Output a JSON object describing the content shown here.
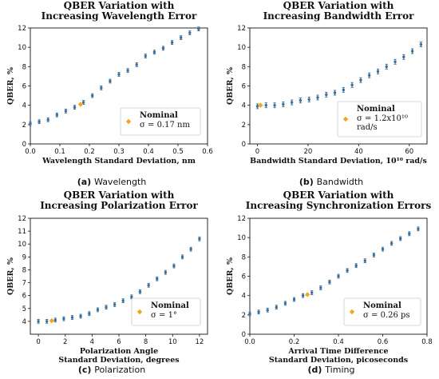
{
  "chart_data": [
    {
      "type": "scatter",
      "title_lines": [
        "QBER Variation with",
        "Increasing Wavelength Error"
      ],
      "xlabel_lines": [
        "Wavelength Standard Deviation, nm"
      ],
      "ylabel": "QBER, %",
      "xlim": [
        0,
        0.6
      ],
      "ylim": [
        0,
        12
      ],
      "xticks": [
        "0.0",
        "0.1",
        "0.2",
        "0.3",
        "0.4",
        "0.5",
        "0.6"
      ],
      "xtick_values": [
        0,
        0.1,
        0.2,
        0.3,
        0.4,
        0.5,
        0.6
      ],
      "yticks": [
        "0",
        "2",
        "4",
        "6",
        "8",
        "10",
        "12"
      ],
      "ytick_values": [
        0,
        2,
        4,
        6,
        8,
        10,
        12
      ],
      "x": [
        0.0,
        0.03,
        0.06,
        0.09,
        0.12,
        0.15,
        0.18,
        0.21,
        0.24,
        0.27,
        0.3,
        0.33,
        0.36,
        0.39,
        0.42,
        0.45,
        0.48,
        0.51,
        0.54,
        0.57
      ],
      "y": [
        2.1,
        2.3,
        2.5,
        3.0,
        3.4,
        3.8,
        4.3,
        5.0,
        5.8,
        6.5,
        7.2,
        7.6,
        8.2,
        9.1,
        9.5,
        9.9,
        10.5,
        11.0,
        11.5,
        11.9
      ],
      "err": [
        0.2,
        0.2,
        0.2,
        0.2,
        0.2,
        0.2,
        0.2,
        0.2,
        0.2,
        0.2,
        0.2,
        0.2,
        0.2,
        0.2,
        0.2,
        0.2,
        0.2,
        0.2,
        0.2,
        0.2
      ],
      "nominal": {
        "x": 0.17,
        "y": 4.1
      },
      "legend_title": "Nominal",
      "legend_lines": [
        "σ = 0.17 nm"
      ],
      "legend_position": "bottom-right",
      "grid": false,
      "caption_letter": "(a)",
      "caption_text": "Wavelength"
    },
    {
      "type": "scatter",
      "title_lines": [
        "QBER Variation with",
        "Increasing Bandwidth Error"
      ],
      "xlabel_lines": [
        "Bandwidth Standard Deviation, 10¹⁰ rad/s"
      ],
      "ylabel": "QBER, %",
      "xlim": [
        -3,
        67
      ],
      "ylim": [
        0,
        12
      ],
      "xticks": [
        "0",
        "20",
        "40",
        "60"
      ],
      "xtick_values": [
        0,
        20,
        40,
        60
      ],
      "yticks": [
        "0",
        "2",
        "4",
        "6",
        "8",
        "10",
        "12"
      ],
      "ytick_values": [
        0,
        2,
        4,
        6,
        8,
        10,
        12
      ],
      "x": [
        0,
        3.4,
        6.8,
        10.2,
        13.6,
        17,
        20.4,
        23.8,
        27.2,
        30.6,
        34,
        37.4,
        40.8,
        44.2,
        47.6,
        51,
        54.4,
        57.8,
        61.2,
        64.6
      ],
      "y": [
        3.9,
        4.0,
        4.0,
        4.1,
        4.3,
        4.5,
        4.6,
        4.8,
        5.1,
        5.3,
        5.6,
        6.1,
        6.6,
        7.1,
        7.5,
        8.0,
        8.5,
        9.0,
        9.6,
        10.3
      ],
      "err": [
        0.25,
        0.25,
        0.25,
        0.25,
        0.25,
        0.25,
        0.25,
        0.25,
        0.25,
        0.25,
        0.25,
        0.25,
        0.25,
        0.25,
        0.25,
        0.25,
        0.25,
        0.25,
        0.25,
        0.25
      ],
      "nominal": {
        "x": 1.2,
        "y": 4.0
      },
      "legend_title": "Nominal",
      "legend_lines": [
        "σ = 1.2x10¹⁰",
        "rad/s"
      ],
      "legend_position": "bottom-right",
      "grid": false,
      "caption_letter": "(b)",
      "caption_text": "Bandwidth"
    },
    {
      "type": "scatter",
      "title_lines": [
        "QBER Variation with",
        "Increasing Polarization Error"
      ],
      "xlabel_lines": [
        "Polarization Angle",
        "Standard Deviation, degrees"
      ],
      "ylabel": "QBER, %",
      "xlim": [
        -0.6,
        12.6
      ],
      "ylim": [
        3,
        12
      ],
      "xticks": [
        "0",
        "2",
        "4",
        "6",
        "8",
        "10",
        "12"
      ],
      "xtick_values": [
        0,
        2,
        4,
        6,
        8,
        10,
        12
      ],
      "yticks": [
        "4",
        "5",
        "6",
        "7",
        "8",
        "9",
        "10",
        "11",
        "12"
      ],
      "ytick_values": [
        4,
        5,
        6,
        7,
        8,
        9,
        10,
        11,
        12
      ],
      "x": [
        0,
        0.63,
        1.26,
        1.89,
        2.52,
        3.15,
        3.79,
        4.42,
        5.05,
        5.68,
        6.31,
        6.94,
        7.57,
        8.21,
        8.84,
        9.47,
        10.1,
        10.73,
        11.36,
        12.0
      ],
      "y": [
        4.0,
        4.0,
        4.1,
        4.2,
        4.3,
        4.4,
        4.6,
        4.9,
        5.1,
        5.3,
        5.6,
        5.9,
        6.3,
        6.8,
        7.3,
        7.8,
        8.3,
        9.0,
        9.6,
        10.4
      ],
      "err": [
        0.15,
        0.15,
        0.15,
        0.15,
        0.15,
        0.15,
        0.15,
        0.15,
        0.15,
        0.15,
        0.15,
        0.15,
        0.15,
        0.15,
        0.15,
        0.15,
        0.15,
        0.15,
        0.15,
        0.15
      ],
      "nominal": {
        "x": 1.0,
        "y": 4.05
      },
      "legend_title": "Nominal",
      "legend_lines": [
        "σ = 1°"
      ],
      "legend_position": "bottom-right",
      "grid": false,
      "caption_letter": "(c)",
      "caption_text": "Polarization"
    },
    {
      "type": "scatter",
      "title_lines": [
        "QBER Variation with",
        "Increasing Synchronization Errors"
      ],
      "xlabel_lines": [
        "Arrival Time Difference",
        "Standard Deviation, picoseconds"
      ],
      "ylabel": "QBER, %",
      "xlim": [
        0,
        0.8
      ],
      "ylim": [
        0,
        12
      ],
      "xticks": [
        "0.0",
        "0.2",
        "0.4",
        "0.6",
        "0.8"
      ],
      "xtick_values": [
        0,
        0.2,
        0.4,
        0.6,
        0.8
      ],
      "yticks": [
        "0",
        "2",
        "4",
        "6",
        "8",
        "10",
        "12"
      ],
      "ytick_values": [
        0,
        2,
        4,
        6,
        8,
        10,
        12
      ],
      "x": [
        0.0,
        0.04,
        0.08,
        0.12,
        0.16,
        0.2,
        0.24,
        0.28,
        0.32,
        0.36,
        0.4,
        0.44,
        0.48,
        0.52,
        0.56,
        0.6,
        0.64,
        0.68,
        0.72,
        0.76
      ],
      "y": [
        2.1,
        2.3,
        2.5,
        2.8,
        3.2,
        3.6,
        4.0,
        4.3,
        4.8,
        5.4,
        6.0,
        6.6,
        7.1,
        7.6,
        8.2,
        8.8,
        9.4,
        9.9,
        10.4,
        10.9
      ],
      "err": [
        0.2,
        0.2,
        0.2,
        0.2,
        0.2,
        0.2,
        0.2,
        0.2,
        0.2,
        0.2,
        0.2,
        0.2,
        0.2,
        0.2,
        0.2,
        0.2,
        0.2,
        0.2,
        0.2,
        0.2
      ],
      "nominal": {
        "x": 0.26,
        "y": 4.1
      },
      "legend_title": "Nominal",
      "legend_lines": [
        "σ = 0.26 ps"
      ],
      "legend_position": "bottom-right",
      "grid": false,
      "caption_letter": "(d)",
      "caption_text": "Timing"
    }
  ],
  "colors": {
    "points": "#3b6e99",
    "nominal": "#f2a71b",
    "axis": "#111111"
  }
}
